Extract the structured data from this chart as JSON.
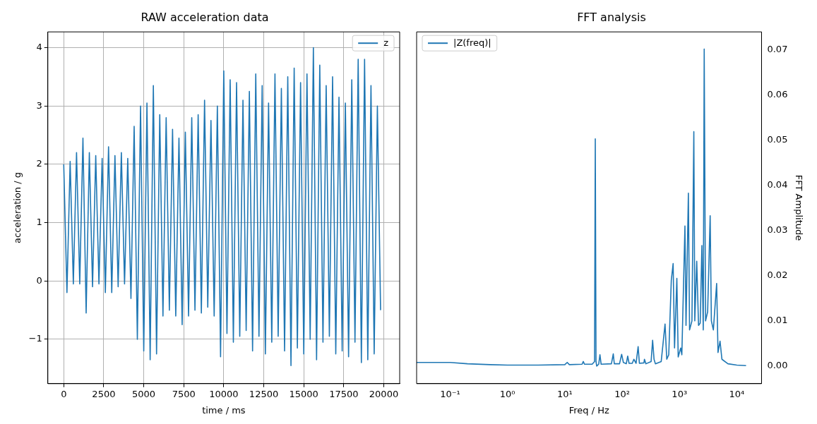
{
  "chart_data": [
    {
      "type": "line",
      "title": "RAW acceleration data",
      "xlabel": "time / ms",
      "ylabel": "acceleration / g",
      "xlim": [
        -993,
        20993
      ],
      "ylim": [
        -1.76,
        4.27
      ],
      "xticks": [
        0,
        2500,
        5000,
        7500,
        10000,
        12500,
        15000,
        17500,
        20000
      ],
      "yticks": [
        -1,
        0,
        1,
        2,
        3,
        4
      ],
      "grid": true,
      "legend": "top right",
      "series": [
        {
          "name": "z",
          "color": "#1f77b4",
          "x": [
            0,
            200,
            400,
            600,
            800,
            1000,
            1200,
            1400,
            1600,
            1800,
            2000,
            2200,
            2400,
            2600,
            2800,
            3000,
            3200,
            3400,
            3600,
            3800,
            4000,
            4200,
            4400,
            4600,
            4800,
            5000,
            5200,
            5400,
            5600,
            5800,
            6000,
            6200,
            6400,
            6600,
            6800,
            7000,
            7200,
            7400,
            7600,
            7800,
            8000,
            8200,
            8400,
            8600,
            8800,
            9000,
            9200,
            9400,
            9600,
            9800,
            10000,
            10200,
            10400,
            10600,
            10800,
            11000,
            11200,
            11400,
            11600,
            11800,
            12000,
            12200,
            12400,
            12600,
            12800,
            13000,
            13200,
            13400,
            13600,
            13800,
            14000,
            14200,
            14400,
            14600,
            14800,
            15000,
            15200,
            15400,
            15600,
            15800,
            16000,
            16200,
            16400,
            16600,
            16800,
            17000,
            17200,
            17400,
            17600,
            17800,
            18000,
            18200,
            18400,
            18600,
            18800,
            19000,
            19200,
            19400,
            19600,
            19800
          ],
          "values": [
            2.0,
            -0.2,
            2.05,
            -0.05,
            2.2,
            -0.05,
            2.45,
            -0.55,
            2.2,
            -0.1,
            2.15,
            -0.05,
            2.1,
            -0.2,
            2.3,
            -0.2,
            2.15,
            -0.1,
            2.2,
            -0.05,
            2.1,
            -0.3,
            2.65,
            -1.0,
            3.0,
            -1.2,
            3.05,
            -1.35,
            3.35,
            -1.25,
            2.85,
            -0.6,
            2.8,
            -0.5,
            2.6,
            -0.6,
            2.45,
            -0.75,
            2.55,
            -0.6,
            2.8,
            -0.5,
            2.85,
            -0.55,
            3.1,
            -0.45,
            2.75,
            -0.6,
            3.0,
            -1.3,
            3.6,
            -0.9,
            3.45,
            -1.05,
            3.4,
            -0.95,
            3.1,
            -0.85,
            3.25,
            -1.2,
            3.55,
            -0.95,
            3.35,
            -1.25,
            3.05,
            -1.05,
            3.55,
            -0.95,
            3.3,
            -1.2,
            3.5,
            -1.45,
            3.65,
            -1.15,
            3.4,
            -1.25,
            3.55,
            -1.0,
            4.0,
            -1.35,
            3.7,
            -1.05,
            3.35,
            -0.95,
            3.5,
            -1.25,
            3.15,
            -1.2,
            3.05,
            -1.3,
            3.45,
            -1.05,
            3.8,
            -1.4,
            3.8,
            -1.35,
            3.35,
            -1.25,
            3.0,
            -0.5
          ]
        }
      ]
    },
    {
      "type": "line",
      "title": "FFT analysis",
      "xlabel": "Freq / Hz",
      "y2label": "FFT Amplitude",
      "log": "x",
      "xlim": [
        0.026,
        27000
      ],
      "y2lim": [
        -0.0039,
        0.074
      ],
      "xticks": [
        {
          "value": 0.1,
          "label": "10⁻¹"
        },
        {
          "value": 1,
          "label": "10⁰"
        },
        {
          "value": 10,
          "label": "10¹"
        },
        {
          "value": 100,
          "label": "10²"
        },
        {
          "value": 1000,
          "label": "10³"
        },
        {
          "value": 10000,
          "label": "10⁴"
        }
      ],
      "y2ticks": [
        {
          "value": 0,
          "label": "0.00"
        },
        {
          "value": 0.01,
          "label": "0.01"
        },
        {
          "value": 0.02,
          "label": "0.02"
        },
        {
          "value": 0.03,
          "label": "0.03"
        },
        {
          "value": 0.04,
          "label": "0.04"
        },
        {
          "value": 0.05,
          "label": "0.05"
        },
        {
          "value": 0.06,
          "label": "0.06"
        },
        {
          "value": 0.07,
          "label": "0.07"
        }
      ],
      "grid": false,
      "legend": "top left",
      "series": [
        {
          "name": "|Z(freq)|",
          "color": "#1f77b4",
          "axis": "y2",
          "x": [
            0.026,
            0.1,
            0.2,
            0.5,
            1,
            3,
            10,
            11,
            12,
            20,
            21,
            22,
            30,
            33,
            34,
            35,
            36,
            39,
            41,
            43,
            65,
            70,
            73,
            90,
            98,
            105,
            118,
            125,
            132,
            150,
            160,
            175,
            190,
            200,
            240,
            245,
            260,
            320,
            340,
            360,
            380,
            480,
            560,
            600,
            650,
            720,
            775,
            820,
            900,
            950,
            1050,
            1100,
            1245,
            1300,
            1430,
            1500,
            1650,
            1780,
            1850,
            2000,
            2150,
            2300,
            2460,
            2600,
            2700,
            2850,
            3100,
            3430,
            3600,
            3900,
            4450,
            4700,
            5100,
            5500,
            7000,
            10000,
            14500
          ],
          "values": [
            0.0008,
            0.0008,
            0.0005,
            0.0003,
            0.0002,
            0.0002,
            0.0003,
            0.0008,
            0.0003,
            0.0004,
            0.001,
            0.0004,
            0.0004,
            0.001,
            0.0503,
            0.001,
            0.0,
            0.0004,
            0.0025,
            0.0004,
            0.0005,
            0.0027,
            0.0005,
            0.0005,
            0.0026,
            0.0008,
            0.0005,
            0.0022,
            0.0006,
            0.0006,
            0.0015,
            0.0006,
            0.0043,
            0.0006,
            0.0007,
            0.0015,
            0.0005,
            0.001,
            0.0057,
            0.0015,
            0.0005,
            0.001,
            0.0093,
            0.0015,
            0.0025,
            0.019,
            0.0227,
            0.004,
            0.0194,
            0.002,
            0.004,
            0.0025,
            0.031,
            0.009,
            0.0383,
            0.008,
            0.01,
            0.0519,
            0.01,
            0.0232,
            0.009,
            0.0095,
            0.0267,
            0.008,
            0.0702,
            0.01,
            0.012,
            0.0333,
            0.01,
            0.008,
            0.0183,
            0.003,
            0.0055,
            0.0015,
            0.0005,
            0.0002,
            0.0001
          ]
        }
      ]
    }
  ]
}
